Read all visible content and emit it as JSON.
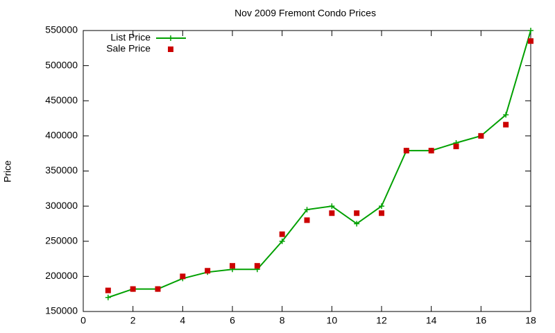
{
  "chart_data": {
    "type": "line",
    "title": "Nov 2009 Fremont Condo Prices",
    "ylabel": "Price",
    "x": [
      1,
      2,
      3,
      4,
      5,
      6,
      7,
      8,
      9,
      10,
      11,
      12,
      13,
      14,
      15,
      16,
      17,
      18
    ],
    "series": [
      {
        "name": "List Price",
        "color": "#00a000",
        "style": "linespoints",
        "values": [
          170000,
          182000,
          182000,
          197000,
          206000,
          210000,
          210000,
          250000,
          295000,
          300000,
          275000,
          300000,
          379000,
          379000,
          390000,
          400000,
          430000,
          550000
        ]
      },
      {
        "name": "Sale Price",
        "color": "#cc0000",
        "style": "points",
        "values": [
          180000,
          182000,
          182000,
          200000,
          208000,
          215000,
          215000,
          260000,
          280000,
          290000,
          290000,
          290000,
          379000,
          379000,
          385000,
          400000,
          416000,
          535000
        ]
      }
    ],
    "xlim": [
      0,
      18
    ],
    "xticks": [
      0,
      2,
      4,
      6,
      8,
      10,
      12,
      14,
      16,
      18
    ],
    "ylim": [
      150000,
      550000
    ],
    "yticks": [
      150000,
      200000,
      250000,
      300000,
      350000,
      400000,
      450000,
      500000,
      550000
    ],
    "grid": false,
    "legend": "top-left"
  }
}
